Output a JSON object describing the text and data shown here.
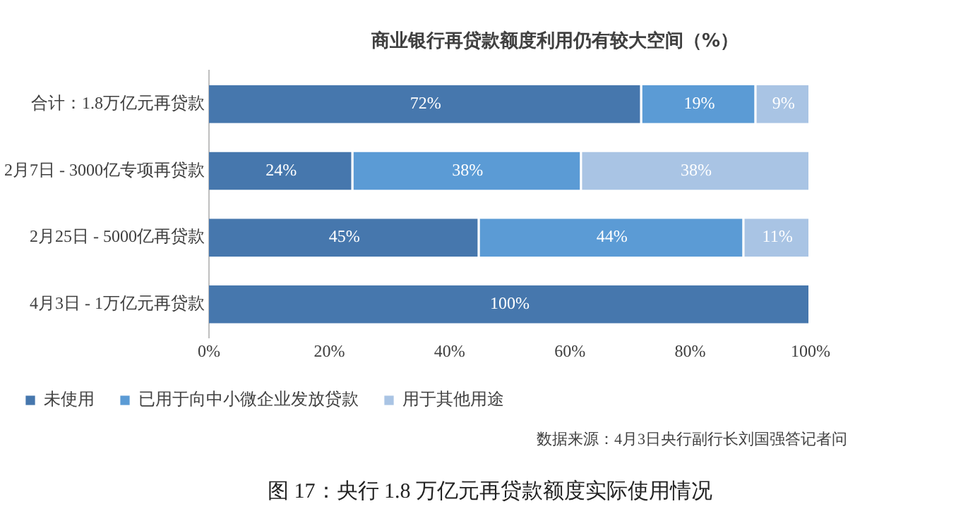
{
  "chart_data": {
    "type": "bar",
    "orientation": "horizontal",
    "stacked": true,
    "title": "商业银行再贷款额度利用仍有较大空间（%）",
    "categories": [
      "合计：1.8万亿元再贷款",
      "2月7日 - 3000亿专项再贷款",
      "2月25日 - 5000亿再贷款",
      "4月3日 - 1万亿元再贷款"
    ],
    "series": [
      {
        "name": "未使用",
        "color": "#4677ad",
        "values": [
          72,
          24,
          45,
          100
        ],
        "value_labels": [
          "72%",
          "24%",
          "45%",
          "100%"
        ]
      },
      {
        "name": "已用于向中小微企业发放贷款",
        "color": "#5b9bd5",
        "values": [
          19,
          38,
          44,
          0
        ],
        "value_labels": [
          "19%",
          "38%",
          "44%",
          null
        ]
      },
      {
        "name": "用于其他用途",
        "color": "#a9c4e4",
        "values": [
          9,
          38,
          11,
          0
        ],
        "value_labels": [
          "9%",
          "38%",
          "11%",
          null
        ]
      }
    ],
    "xlim": [
      0,
      100
    ],
    "xticks": [
      {
        "value": 0,
        "label": "0%"
      },
      {
        "value": 20,
        "label": "20%"
      },
      {
        "value": 40,
        "label": "40%"
      },
      {
        "value": 60,
        "label": "60%"
      },
      {
        "value": 80,
        "label": "80%"
      },
      {
        "value": 100,
        "label": "100%"
      }
    ],
    "grid": false,
    "legend": "bottom",
    "annotations": [
      "数据来源：4月3日央行副行长刘国强答记者问",
      "图 17：央行 1.8 万亿元再贷款额度实际使用情况"
    ]
  }
}
